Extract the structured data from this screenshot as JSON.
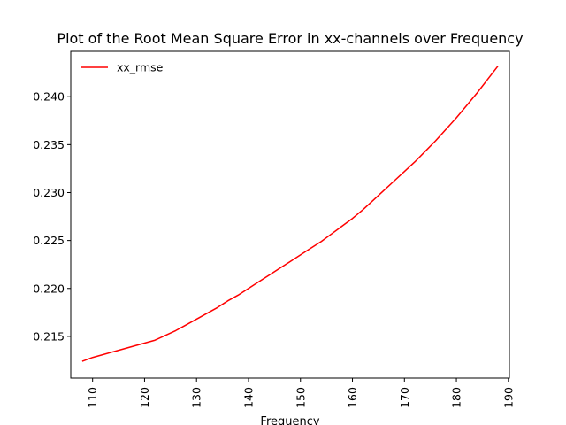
{
  "chart_data": {
    "type": "line",
    "title": "Plot of the Root Mean Square Error in xx-channels over Frequency",
    "xlabel": "Frequency",
    "ylabel": "",
    "xlim": [
      105.8,
      190.2
    ],
    "ylim": [
      0.21065,
      0.24473
    ],
    "xticks": [
      110,
      120,
      130,
      140,
      150,
      160,
      170,
      180,
      190
    ],
    "yticks": [
      0.215,
      0.22,
      0.225,
      0.23,
      0.235,
      0.24
    ],
    "legend": {
      "position": "top-left"
    },
    "grid": false,
    "series": [
      {
        "name": "xx_rmse",
        "color": "#ff0000",
        "x": [
          108,
          110,
          112,
          114,
          116,
          118,
          120,
          122,
          124,
          126,
          128,
          130,
          132,
          134,
          136,
          138,
          140,
          142,
          144,
          146,
          148,
          150,
          152,
          154,
          156,
          158,
          160,
          162,
          164,
          166,
          168,
          170,
          172,
          174,
          176,
          178,
          180,
          182,
          184,
          186,
          188
        ],
        "y": [
          0.2124,
          0.2128,
          0.2131,
          0.2134,
          0.2137,
          0.214,
          0.2143,
          0.2146,
          0.2151,
          0.2156,
          0.2162,
          0.2168,
          0.2174,
          0.218,
          0.2187,
          0.2193,
          0.22,
          0.2207,
          0.2214,
          0.2221,
          0.2228,
          0.2235,
          0.2242,
          0.2249,
          0.2257,
          0.2265,
          0.2273,
          0.2282,
          0.2292,
          0.2302,
          0.2312,
          0.2322,
          0.2332,
          0.2343,
          0.2354,
          0.2366,
          0.2378,
          0.2391,
          0.2404,
          0.2418,
          0.2432
        ]
      }
    ]
  }
}
